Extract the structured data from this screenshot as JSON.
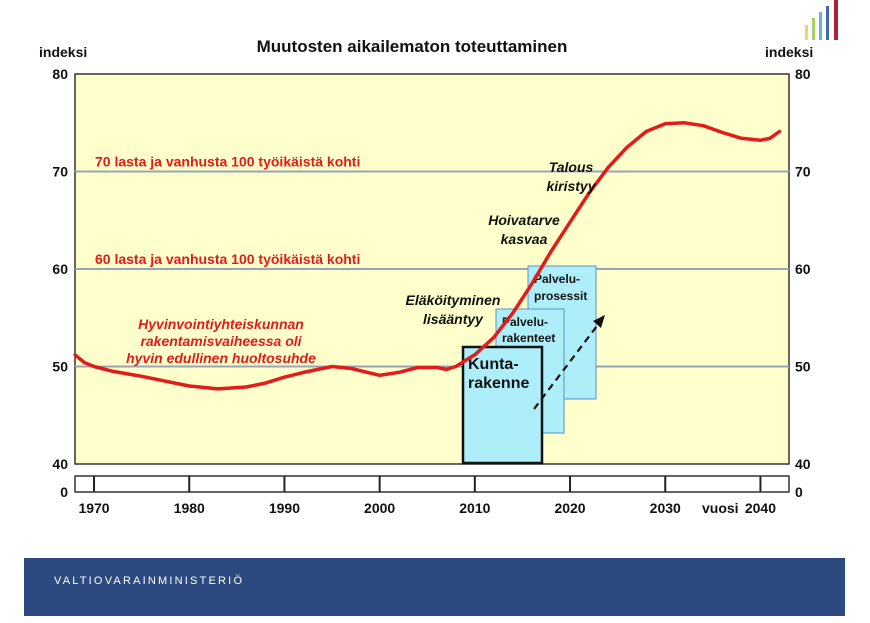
{
  "chart_data": {
    "type": "line",
    "title": "Muutosten aikailematon toteuttaminen",
    "ylabel_left": "indeksi",
    "ylabel_right": "indeksi",
    "xlabel": "vuosi",
    "ylim": [
      40,
      80
    ],
    "xlim": [
      1968,
      2043
    ],
    "y_ticks": [
      "40",
      "50",
      "60",
      "70",
      "80"
    ],
    "y_zero_label": "0",
    "x_ticks": [
      "1970",
      "1980",
      "1990",
      "2000",
      "2010",
      "2020",
      "2030",
      "2040"
    ],
    "x_tick_values": [
      1970,
      1980,
      1990,
      2000,
      2010,
      2020,
      2030,
      2040
    ],
    "grid": true,
    "series": [
      {
        "color": "#e31b1b",
        "x": [
          1968,
          1969,
          1970,
          1972,
          1975,
          1978,
          1980,
          1983,
          1986,
          1988,
          1990,
          1992,
          1995,
          1997,
          2000,
          2002,
          2004,
          2006,
          2007,
          2008,
          2010,
          2012,
          2014,
          2016,
          2018,
          2020,
          2022,
          2024,
          2026,
          2028,
          2030,
          2032,
          2034,
          2036,
          2038,
          2040,
          2041,
          2042
        ],
        "y": [
          51.2,
          50.4,
          50.0,
          49.5,
          49.0,
          48.4,
          48.0,
          47.7,
          47.9,
          48.3,
          48.9,
          49.4,
          50.0,
          49.8,
          49.1,
          49.4,
          49.9,
          49.9,
          49.7,
          50.0,
          51.2,
          53.0,
          55.5,
          58.5,
          61.8,
          64.8,
          67.8,
          70.4,
          72.5,
          74.1,
          74.9,
          75.0,
          74.7,
          74.0,
          73.4,
          73.2,
          73.4,
          74.1
        ]
      }
    ],
    "reference_lines": [
      {
        "y": 70,
        "label": "70 lasta ja vanhusta 100 työikäistä kohti"
      },
      {
        "y": 60,
        "label": "60 lasta ja vanhusta 100 työikäistä kohti"
      }
    ],
    "annotations": {
      "hyvinvointi": [
        "Hyvinvointiyhteiskunnan",
        "rakentamisvaiheessa oli",
        "hyvin edullinen huoltosuhde"
      ],
      "elakoityminen": [
        "Eläköityminen",
        "lisääntyy"
      ],
      "hoivatarve": [
        "Hoivatarve",
        "kasvaa"
      ],
      "talous": [
        "Talous",
        "kiristyy"
      ]
    },
    "boxes": {
      "kunta": [
        "Kunta-",
        "rakenne"
      ],
      "palvelurakenteet": [
        "Palvelu-",
        "rakenteet"
      ],
      "palveluprosessit": [
        "Palvelu-",
        "prosessit"
      ]
    },
    "colors": {
      "plot_bg": "#ffffcc",
      "line": "#e31b1b",
      "box_fill": "#aeeef8",
      "gridline": "#9aa4b8"
    }
  },
  "footer": {
    "organization": "VALTIOVARAINMINISTERIÖ"
  }
}
